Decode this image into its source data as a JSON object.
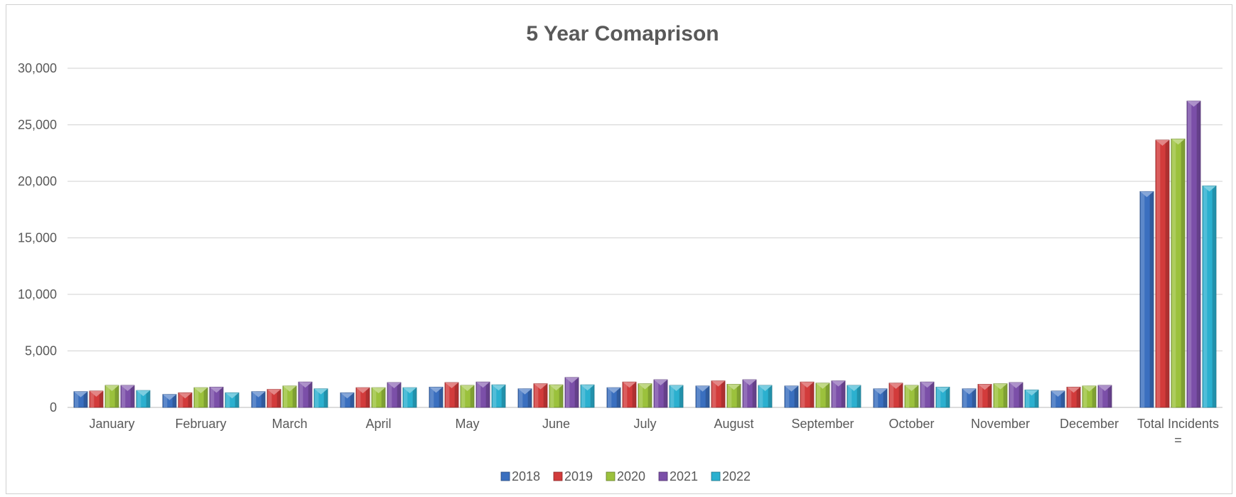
{
  "chart_data": {
    "type": "bar",
    "title": "5 Year Comaprison",
    "xlabel": "",
    "ylabel": "",
    "ylim": [
      0,
      30000
    ],
    "yticks": [
      0,
      5000,
      10000,
      15000,
      20000,
      25000,
      30000
    ],
    "ytick_labels": [
      "0",
      "5,000",
      "10,000",
      "15,000",
      "20,000",
      "25,000",
      "30,000"
    ],
    "grid": true,
    "legend_position": "bottom",
    "categories": [
      "January",
      "February",
      "March",
      "April",
      "May",
      "June",
      "July",
      "August",
      "September",
      "October",
      "November",
      "December",
      "Total Incidents\n="
    ],
    "series": [
      {
        "name": "2018",
        "color": "#3a6fbf",
        "values": [
          1400,
          1150,
          1400,
          1300,
          1800,
          1650,
          1750,
          1900,
          1900,
          1650,
          1650,
          1450,
          19100
        ]
      },
      {
        "name": "2019",
        "color": "#d23b3b",
        "values": [
          1450,
          1300,
          1600,
          1750,
          2200,
          2100,
          2250,
          2350,
          2250,
          2150,
          2050,
          1800,
          23650
        ]
      },
      {
        "name": "2020",
        "color": "#9bc13c",
        "values": [
          1950,
          1750,
          1900,
          1750,
          1950,
          2000,
          2100,
          2050,
          2150,
          1950,
          2100,
          1900,
          23750
        ]
      },
      {
        "name": "2021",
        "color": "#7b4fa8",
        "values": [
          1950,
          1800,
          2250,
          2200,
          2250,
          2650,
          2450,
          2450,
          2350,
          2250,
          2200,
          1950,
          27100
        ]
      },
      {
        "name": "2022",
        "color": "#2bb0cf",
        "values": [
          1500,
          1300,
          1650,
          1750,
          2000,
          2000,
          1950,
          1950,
          1950,
          1800,
          1550,
          null,
          19600
        ]
      }
    ]
  }
}
